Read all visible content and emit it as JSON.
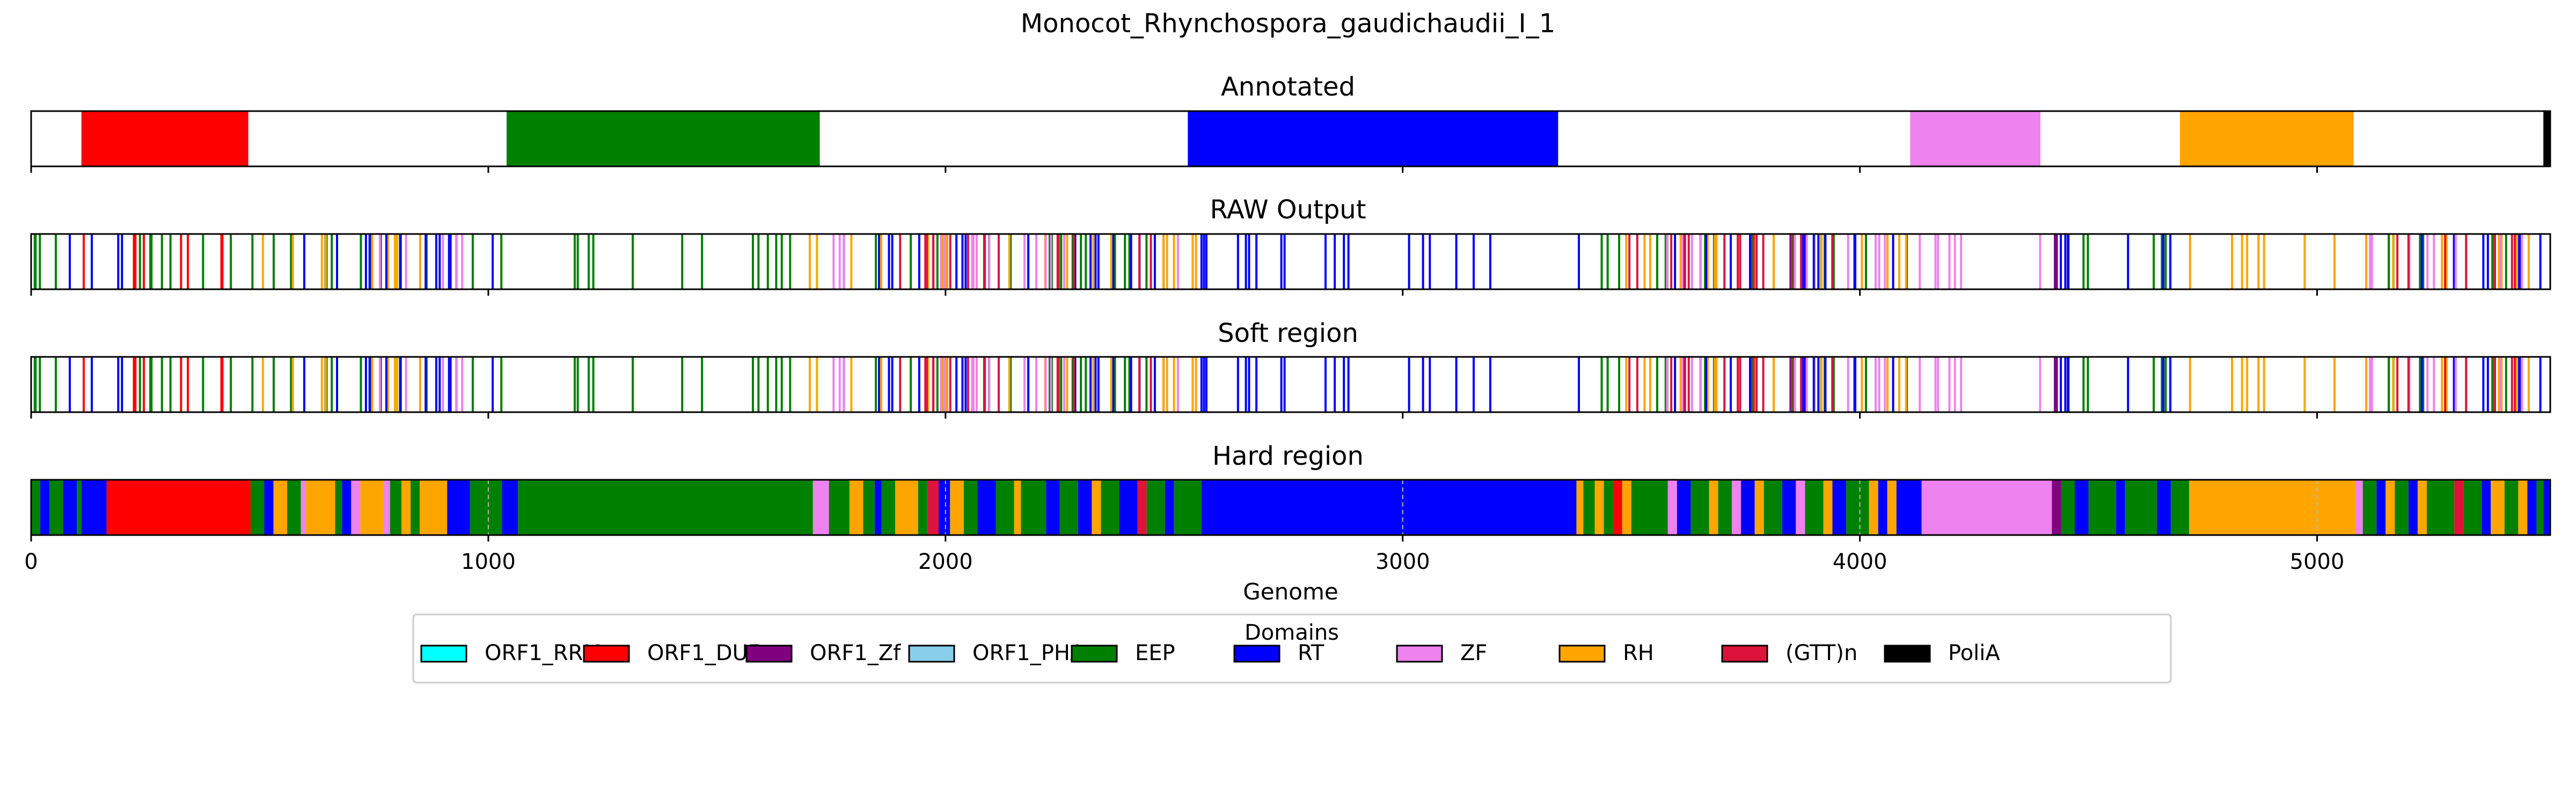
{
  "chart_data": {
    "type": "broken_barh",
    "title": "Monocot_Rhynchospora_gaudichaudii_I_1",
    "xlabel": "Genome",
    "xlim": [
      0,
      5510
    ],
    "xticks": [
      0,
      1000,
      2000,
      3000,
      4000,
      5000
    ],
    "xtick_labels": [
      "0",
      "1000",
      "2000",
      "3000",
      "4000",
      "5000"
    ],
    "panels": [
      {
        "key": "annotated",
        "title": "Annotated",
        "mode": "segments",
        "segments": [
          {
            "domain": "ORF1_DUF",
            "start": 110,
            "end": 475
          },
          {
            "domain": "EEP",
            "start": 1040,
            "end": 1725
          },
          {
            "domain": "RT",
            "start": 2530,
            "end": 3340
          },
          {
            "domain": "ZF",
            "start": 4110,
            "end": 4395
          },
          {
            "domain": "RH",
            "start": 4700,
            "end": 5080
          },
          {
            "domain": "PoliA",
            "start": 5495,
            "end": 5510
          }
        ]
      },
      {
        "key": "raw",
        "title": "RAW Output",
        "mode": "lines",
        "segments": [
          {
            "domain": "EEP",
            "start": 0,
            "end": 480
          },
          {
            "domain": "ORF1_DUF",
            "start": 90,
            "end": 430
          },
          {
            "domain": "RT",
            "start": 0,
            "end": 200
          },
          {
            "domain": "EEP",
            "start": 480,
            "end": 1050
          },
          {
            "domain": "RH",
            "start": 500,
            "end": 950
          },
          {
            "domain": "RT",
            "start": 480,
            "end": 1050
          },
          {
            "domain": "ZF",
            "start": 730,
            "end": 960
          },
          {
            "domain": "EEP",
            "start": 1050,
            "end": 2560
          },
          {
            "domain": "RT",
            "start": 1700,
            "end": 2560
          },
          {
            "domain": "RH",
            "start": 1700,
            "end": 2560
          },
          {
            "domain": "ZF",
            "start": 1650,
            "end": 2560
          },
          {
            "domain": "(GTT)n",
            "start": 1900,
            "end": 2500
          },
          {
            "domain": "RT",
            "start": 2560,
            "end": 3380
          },
          {
            "domain": "EEP",
            "start": 3380,
            "end": 4110
          },
          {
            "domain": "RH",
            "start": 3380,
            "end": 4110
          },
          {
            "domain": "RT",
            "start": 3380,
            "end": 4110
          },
          {
            "domain": "ZF",
            "start": 3550,
            "end": 4110
          },
          {
            "domain": "(GTT)n",
            "start": 3400,
            "end": 4050
          },
          {
            "domain": "ZF",
            "start": 4110,
            "end": 4410
          },
          {
            "domain": "EEP",
            "start": 4410,
            "end": 4700
          },
          {
            "domain": "RT",
            "start": 4410,
            "end": 4700
          },
          {
            "domain": "ORF1_Zf",
            "start": 4410,
            "end": 4450
          },
          {
            "domain": "RH",
            "start": 4700,
            "end": 5100
          },
          {
            "domain": "EEP",
            "start": 5080,
            "end": 5510
          },
          {
            "domain": "RH",
            "start": 5080,
            "end": 5510
          },
          {
            "domain": "RT",
            "start": 5150,
            "end": 5510
          },
          {
            "domain": "ZF",
            "start": 5100,
            "end": 5450
          },
          {
            "domain": "(GTT)n",
            "start": 5100,
            "end": 5450
          }
        ]
      },
      {
        "key": "soft",
        "title": "Soft region",
        "mode": "lines",
        "same_as": "raw"
      },
      {
        "key": "hard",
        "title": "Hard region",
        "mode": "segments",
        "segments": [
          {
            "domain": "EEP",
            "start": 0,
            "end": 20
          },
          {
            "domain": "RT",
            "start": 20,
            "end": 40
          },
          {
            "domain": "EEP",
            "start": 40,
            "end": 70
          },
          {
            "domain": "RT",
            "start": 70,
            "end": 100
          },
          {
            "domain": "EEP",
            "start": 100,
            "end": 110
          },
          {
            "domain": "RT",
            "start": 110,
            "end": 165
          },
          {
            "domain": "ORF1_DUF",
            "start": 165,
            "end": 480
          },
          {
            "domain": "EEP",
            "start": 480,
            "end": 510
          },
          {
            "domain": "RT",
            "start": 510,
            "end": 530
          },
          {
            "domain": "RH",
            "start": 530,
            "end": 560
          },
          {
            "domain": "EEP",
            "start": 560,
            "end": 590
          },
          {
            "domain": "ZF",
            "start": 590,
            "end": 600
          },
          {
            "domain": "RH",
            "start": 600,
            "end": 665
          },
          {
            "domain": "EEP",
            "start": 665,
            "end": 680
          },
          {
            "domain": "RT",
            "start": 680,
            "end": 700
          },
          {
            "domain": "ZF",
            "start": 700,
            "end": 720
          },
          {
            "domain": "RH",
            "start": 720,
            "end": 770
          },
          {
            "domain": "ZF",
            "start": 770,
            "end": 785
          },
          {
            "domain": "EEP",
            "start": 785,
            "end": 810
          },
          {
            "domain": "RH",
            "start": 810,
            "end": 830
          },
          {
            "domain": "EEP",
            "start": 830,
            "end": 850
          },
          {
            "domain": "RH",
            "start": 850,
            "end": 910
          },
          {
            "domain": "RT",
            "start": 910,
            "end": 960
          },
          {
            "domain": "EEP",
            "start": 960,
            "end": 1030
          },
          {
            "domain": "RT",
            "start": 1030,
            "end": 1065
          },
          {
            "domain": "EEP",
            "start": 1065,
            "end": 1710
          },
          {
            "domain": "ZF",
            "start": 1710,
            "end": 1745
          },
          {
            "domain": "EEP",
            "start": 1745,
            "end": 1790
          },
          {
            "domain": "RH",
            "start": 1790,
            "end": 1820
          },
          {
            "domain": "EEP",
            "start": 1820,
            "end": 1845
          },
          {
            "domain": "RT",
            "start": 1845,
            "end": 1860
          },
          {
            "domain": "EEP",
            "start": 1860,
            "end": 1890
          },
          {
            "domain": "RH",
            "start": 1890,
            "end": 1940
          },
          {
            "domain": "EEP",
            "start": 1940,
            "end": 1960
          },
          {
            "domain": "(GTT)n",
            "start": 1960,
            "end": 1985
          },
          {
            "domain": "RT",
            "start": 1985,
            "end": 2010
          },
          {
            "domain": "RH",
            "start": 2010,
            "end": 2040
          },
          {
            "domain": "EEP",
            "start": 2040,
            "end": 2070
          },
          {
            "domain": "RT",
            "start": 2070,
            "end": 2110
          },
          {
            "domain": "EEP",
            "start": 2110,
            "end": 2150
          },
          {
            "domain": "RH",
            "start": 2150,
            "end": 2165
          },
          {
            "domain": "EEP",
            "start": 2165,
            "end": 2220
          },
          {
            "domain": "RT",
            "start": 2220,
            "end": 2250
          },
          {
            "domain": "EEP",
            "start": 2250,
            "end": 2290
          },
          {
            "domain": "RT",
            "start": 2290,
            "end": 2320
          },
          {
            "domain": "RH",
            "start": 2320,
            "end": 2340
          },
          {
            "domain": "EEP",
            "start": 2340,
            "end": 2380
          },
          {
            "domain": "RT",
            "start": 2380,
            "end": 2420
          },
          {
            "domain": "(GTT)n",
            "start": 2420,
            "end": 2440
          },
          {
            "domain": "EEP",
            "start": 2440,
            "end": 2480
          },
          {
            "domain": "RT",
            "start": 2480,
            "end": 2500
          },
          {
            "domain": "EEP",
            "start": 2500,
            "end": 2560
          },
          {
            "domain": "RT",
            "start": 2560,
            "end": 3380
          },
          {
            "domain": "RH",
            "start": 3380,
            "end": 3395
          },
          {
            "domain": "EEP",
            "start": 3395,
            "end": 3420
          },
          {
            "domain": "RH",
            "start": 3420,
            "end": 3440
          },
          {
            "domain": "EEP",
            "start": 3440,
            "end": 3460
          },
          {
            "domain": "ORF1_DUF",
            "start": 3460,
            "end": 3480
          },
          {
            "domain": "RH",
            "start": 3480,
            "end": 3500
          },
          {
            "domain": "EEP",
            "start": 3500,
            "end": 3580
          },
          {
            "domain": "ZF",
            "start": 3580,
            "end": 3600
          },
          {
            "domain": "RT",
            "start": 3600,
            "end": 3630
          },
          {
            "domain": "EEP",
            "start": 3630,
            "end": 3670
          },
          {
            "domain": "RH",
            "start": 3670,
            "end": 3690
          },
          {
            "domain": "EEP",
            "start": 3690,
            "end": 3720
          },
          {
            "domain": "ZF",
            "start": 3720,
            "end": 3740
          },
          {
            "domain": "RT",
            "start": 3740,
            "end": 3770
          },
          {
            "domain": "RH",
            "start": 3770,
            "end": 3790
          },
          {
            "domain": "EEP",
            "start": 3790,
            "end": 3830
          },
          {
            "domain": "RT",
            "start": 3830,
            "end": 3860
          },
          {
            "domain": "ZF",
            "start": 3860,
            "end": 3880
          },
          {
            "domain": "EEP",
            "start": 3880,
            "end": 3920
          },
          {
            "domain": "RH",
            "start": 3920,
            "end": 3940
          },
          {
            "domain": "RT",
            "start": 3940,
            "end": 3970
          },
          {
            "domain": "EEP",
            "start": 3970,
            "end": 4020
          },
          {
            "domain": "RH",
            "start": 4020,
            "end": 4040
          },
          {
            "domain": "RT",
            "start": 4040,
            "end": 4060
          },
          {
            "domain": "RH",
            "start": 4060,
            "end": 4080
          },
          {
            "domain": "RT",
            "start": 4080,
            "end": 4135
          },
          {
            "domain": "ZF",
            "start": 4135,
            "end": 4420
          },
          {
            "domain": "ORF1_Zf",
            "start": 4420,
            "end": 4440
          },
          {
            "domain": "EEP",
            "start": 4440,
            "end": 4470
          },
          {
            "domain": "RT",
            "start": 4470,
            "end": 4500
          },
          {
            "domain": "EEP",
            "start": 4500,
            "end": 4560
          },
          {
            "domain": "RT",
            "start": 4560,
            "end": 4580
          },
          {
            "domain": "EEP",
            "start": 4580,
            "end": 4650
          },
          {
            "domain": "RT",
            "start": 4650,
            "end": 4680
          },
          {
            "domain": "EEP",
            "start": 4680,
            "end": 4720
          },
          {
            "domain": "RH",
            "start": 4720,
            "end": 5085
          },
          {
            "domain": "ZF",
            "start": 5085,
            "end": 5100
          },
          {
            "domain": "EEP",
            "start": 5100,
            "end": 5130
          },
          {
            "domain": "RT",
            "start": 5130,
            "end": 5150
          },
          {
            "domain": "RH",
            "start": 5150,
            "end": 5170
          },
          {
            "domain": "EEP",
            "start": 5170,
            "end": 5200
          },
          {
            "domain": "RT",
            "start": 5200,
            "end": 5220
          },
          {
            "domain": "RH",
            "start": 5220,
            "end": 5240
          },
          {
            "domain": "EEP",
            "start": 5240,
            "end": 5300
          },
          {
            "domain": "(GTT)n",
            "start": 5300,
            "end": 5320
          },
          {
            "domain": "EEP",
            "start": 5320,
            "end": 5360
          },
          {
            "domain": "RT",
            "start": 5360,
            "end": 5380
          },
          {
            "domain": "RH",
            "start": 5380,
            "end": 5410
          },
          {
            "domain": "EEP",
            "start": 5410,
            "end": 5440
          },
          {
            "domain": "RH",
            "start": 5440,
            "end": 5460
          },
          {
            "domain": "RT",
            "start": 5460,
            "end": 5480
          },
          {
            "domain": "EEP",
            "start": 5480,
            "end": 5495
          },
          {
            "domain": "RT",
            "start": 5495,
            "end": 5510
          }
        ]
      }
    ],
    "legend": {
      "title": "Domains",
      "placement": "bottom-center",
      "entries": [
        {
          "label": "ORF1_RRM",
          "color": "#00ffff"
        },
        {
          "label": "ORF1_DUF",
          "color": "#ff0000"
        },
        {
          "label": "ORF1_Zf",
          "color": "#800080"
        },
        {
          "label": "ORF1_PHA",
          "color": "#87ceeb"
        },
        {
          "label": "EEP",
          "color": "#008000"
        },
        {
          "label": "RT",
          "color": "#0000ff"
        },
        {
          "label": "ZF",
          "color": "#ee82ee"
        },
        {
          "label": "RH",
          "color": "#ffa500"
        },
        {
          "label": "(GTT)n",
          "color": "#dc143c"
        },
        {
          "label": "PoliA",
          "color": "#000000"
        }
      ]
    }
  }
}
